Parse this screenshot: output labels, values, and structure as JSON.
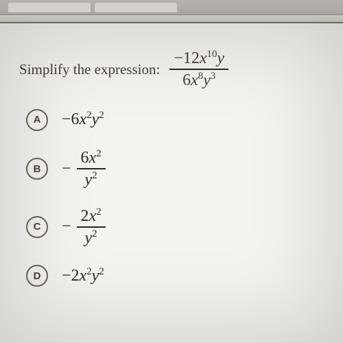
{
  "page": {
    "background_color": "#f5f3ee",
    "text_color": "#463d35"
  },
  "prompt": {
    "label": "Simplify the expression:",
    "fontsize": 21,
    "expression": {
      "numerator_html": "−12<span class='math'>x</span><sup>10</sup><span class='math'>y</span>",
      "denominator_html": "6<span class='math'>x</span><sup>8</sup><span class='math'>y</span><sup>3</sup>"
    }
  },
  "options": [
    {
      "letter": "A",
      "kind": "inline",
      "html": "−6<span class='math'>x</span><sup>2</sup><span class='math'>y</span><sup>2</sup>"
    },
    {
      "letter": "B",
      "kind": "fraction",
      "leading_minus": true,
      "num_html": "6<span class='math'>x</span><sup>2</sup>",
      "den_html": "<span class='math'>y</span><sup>2</sup>"
    },
    {
      "letter": "C",
      "kind": "fraction",
      "leading_minus": true,
      "num_html": "2<span class='math'>x</span><sup>2</sup>",
      "den_html": "<span class='math'>y</span><sup>2</sup>"
    },
    {
      "letter": "D",
      "kind": "inline",
      "html": "−2<span class='math'>x</span><sup>2</sup><span class='math'>y</span><sup>2</sup>"
    }
  ],
  "styling": {
    "bubble_border_color": "#6a6258",
    "bubble_text_color": "#4a4238",
    "option_fontsize": 24,
    "fraction_bar_color": "#2b2620"
  }
}
